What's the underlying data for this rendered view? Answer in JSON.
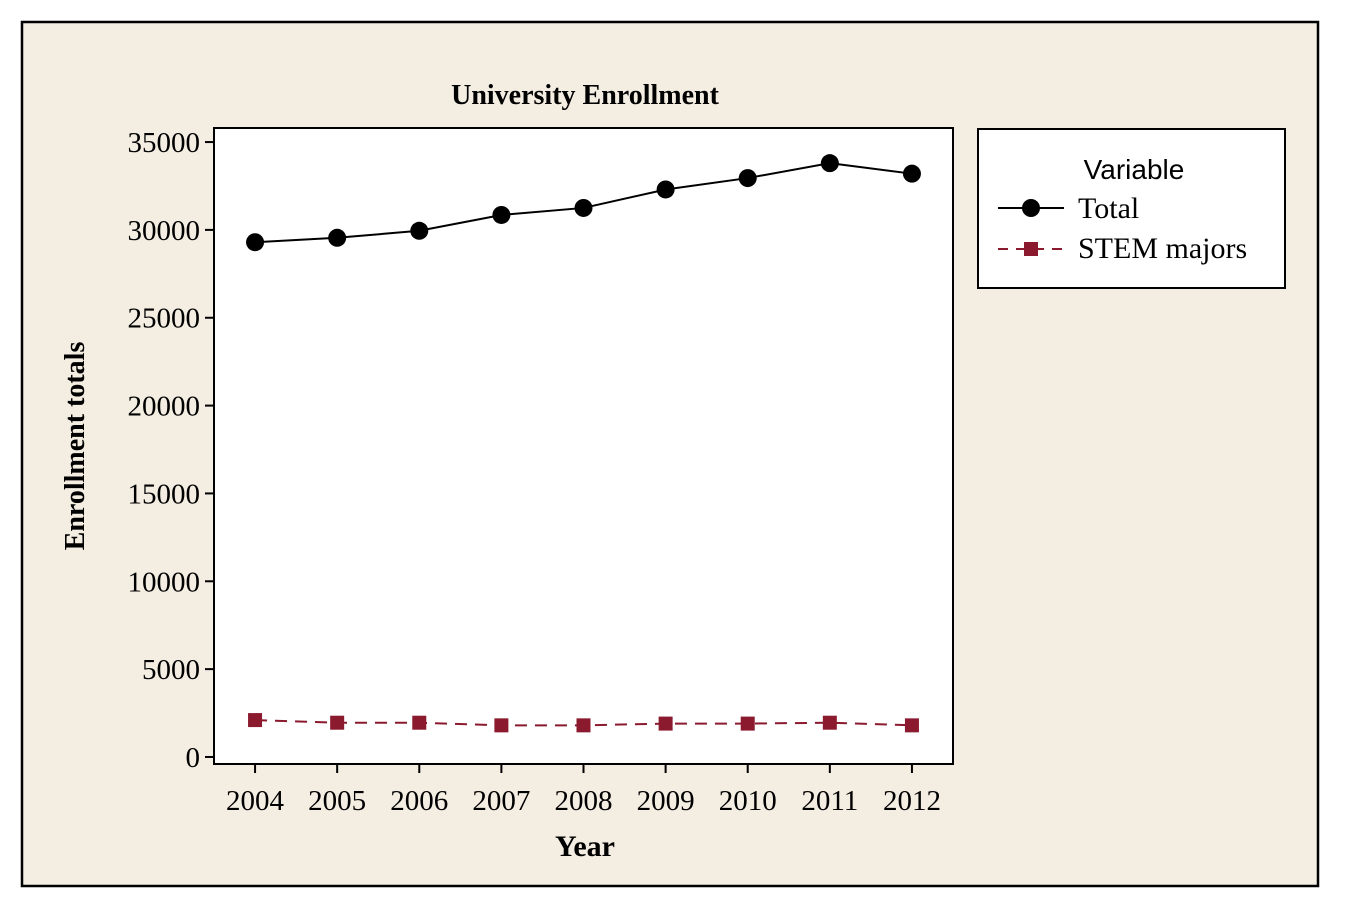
{
  "colors": {
    "background": "#f3ede2",
    "plot_area": "#ffffff",
    "frame": "#000000",
    "total_series": "#000000",
    "stem_series": "#8b1a2e"
  },
  "chart_data": {
    "type": "line",
    "title": "University Enrollment",
    "xlabel": "Year",
    "ylabel": "Enrollment totals",
    "x": [
      2004,
      2005,
      2006,
      2007,
      2008,
      2009,
      2010,
      2011,
      2012
    ],
    "xlim": [
      2003.5,
      2012.5
    ],
    "ylim": [
      -400,
      35800
    ],
    "y_ticks": [
      0,
      5000,
      10000,
      15000,
      20000,
      25000,
      30000,
      35000
    ],
    "grid": false,
    "legend": {
      "title": "Variable",
      "position": "right, top"
    },
    "series": [
      {
        "name": "Total",
        "color": "#000000",
        "marker": "circle",
        "line": "solid",
        "values": [
          29300,
          29550,
          29950,
          30850,
          31250,
          32300,
          32950,
          33800,
          33200
        ]
      },
      {
        "name": "STEM majors",
        "color": "#8b1a2e",
        "marker": "square",
        "line": "dashed",
        "values": [
          2100,
          1950,
          1950,
          1800,
          1800,
          1900,
          1900,
          1950,
          1800
        ]
      }
    ]
  }
}
